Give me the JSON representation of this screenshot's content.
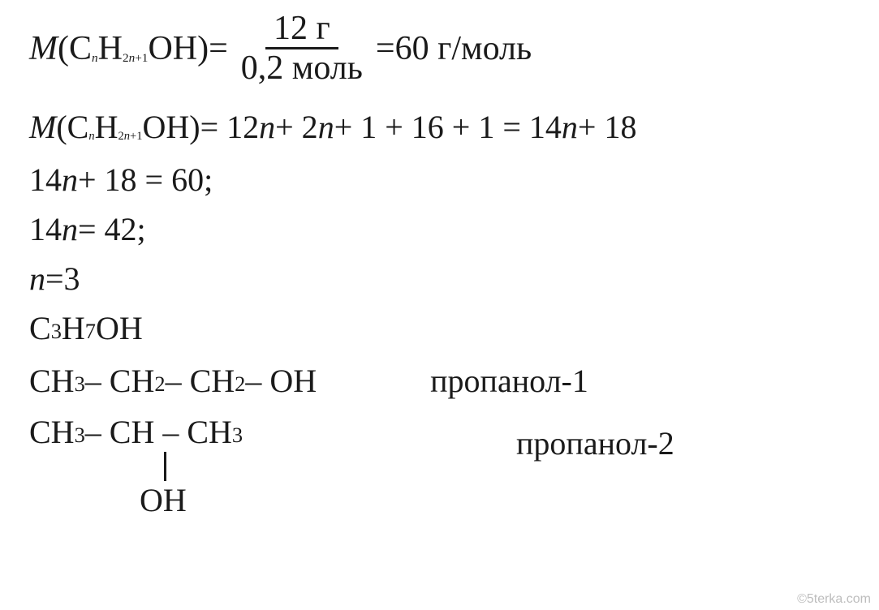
{
  "eq1": {
    "M": "M",
    "left_open": "(C",
    "sub1_outer": "n",
    "H": "H",
    "sub2_outer_a": "2",
    "sub2_outer_n": "n",
    "sub2_outer_b": "+1",
    "OH_close": "OH)",
    "equals": "=",
    "num": "12 г",
    "den": "0,2 моль",
    "equals2": "=",
    "result": "60 г/моль"
  },
  "eq2": {
    "prefix_M": "M",
    "open": "(C",
    "sub_n": "n",
    "H": "H",
    "sub_2n1_a": "2",
    "sub_2n1_n": "n",
    "sub_2n1_b": "+1",
    "OH_close": "OH)",
    "rest": " = 12",
    "n1": "n",
    "plus1": " + 2",
    "n2": "n",
    "plus_mid": " + 1 + 16 + 1 = 14",
    "n3": "n",
    "tail": " + 18"
  },
  "eq3_a": "14",
  "eq3_n": "n",
  "eq3_b": " + 18 = 60;",
  "eq4_a": "14",
  "eq4_n": "n",
  "eq4_b": " = 42;",
  "eq5_n": "n",
  "eq5_b": " =3",
  "eq6": {
    "C": "C",
    "s3": "3",
    "H": "H",
    "s7": "7",
    "OH": "OH"
  },
  "row7": {
    "a": "CH",
    "s1": "3",
    "d1": " – CH",
    "s2": "2",
    "d2": " – CH",
    "s3": "2",
    "d3": " – OH",
    "label": "пропанол-1"
  },
  "row8": {
    "a": "CH",
    "s1": "3",
    "d1": " – CH – CH",
    "s2": "3",
    "oh": "OH",
    "label": "пропанол-2"
  },
  "watermark": "©5terka.com"
}
